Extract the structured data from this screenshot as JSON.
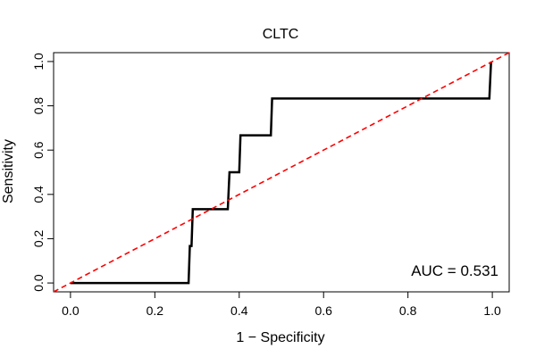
{
  "chart_data": {
    "type": "line",
    "title": "CLTC",
    "xlabel": "1 − Specificity",
    "ylabel": "Sensitivity",
    "xlim": [
      -0.04,
      1.04
    ],
    "ylim": [
      -0.04,
      1.04
    ],
    "x_ticks": [
      0.0,
      0.2,
      0.4,
      0.6,
      0.8,
      1.0
    ],
    "x_tick_labels": [
      "0.0",
      "0.2",
      "0.4",
      "0.6",
      "0.8",
      "1.0"
    ],
    "y_ticks": [
      0.0,
      0.2,
      0.4,
      0.6,
      0.8,
      1.0
    ],
    "y_tick_labels": [
      "0.0",
      "0.2",
      "0.4",
      "0.6",
      "0.8",
      "1.0"
    ],
    "grid": false,
    "annotation": "AUC = 0.531",
    "series": [
      {
        "style": "solid",
        "color": "#000000",
        "x": [
          0.0,
          0.28,
          0.283,
          0.287,
          0.29,
          0.373,
          0.377,
          0.4,
          0.403,
          0.475,
          0.478,
          0.993,
          0.997
        ],
        "y": [
          0.0,
          0.0,
          0.167,
          0.167,
          0.333,
          0.333,
          0.5,
          0.5,
          0.667,
          0.667,
          0.833,
          0.833,
          1.0
        ]
      },
      {
        "style": "dashed",
        "color": "#ff0000",
        "x": [
          -0.04,
          1.04
        ],
        "y": [
          -0.04,
          1.04
        ]
      }
    ]
  }
}
